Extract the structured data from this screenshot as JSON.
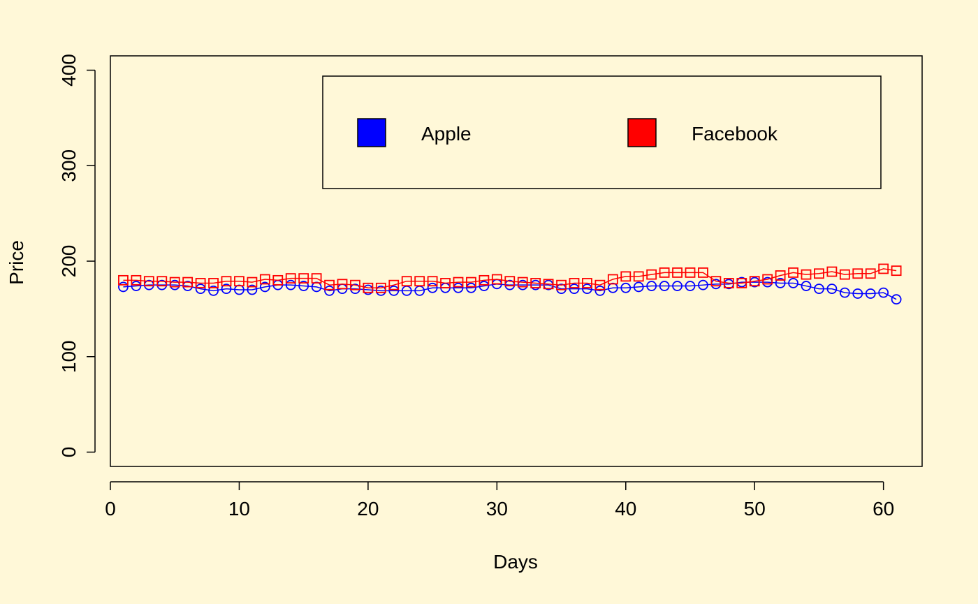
{
  "chart_data": {
    "type": "line",
    "title": "",
    "xlabel": "Days",
    "ylabel": "Price",
    "xlim": [
      0,
      63
    ],
    "ylim": [
      -15,
      415
    ],
    "x_ticks": [
      0,
      10,
      20,
      30,
      40,
      50,
      60
    ],
    "x_tick_labels": [
      "0",
      "10",
      "20",
      "30",
      "40",
      "50",
      "60"
    ],
    "y_ticks": [
      0,
      100,
      200,
      300,
      400
    ],
    "y_tick_labels": [
      "0",
      "100",
      "200",
      "300",
      "400"
    ],
    "grid": false,
    "legend_position": "top-right",
    "background_color": "#fff8d8",
    "x": [
      1,
      2,
      3,
      4,
      5,
      6,
      7,
      8,
      9,
      10,
      11,
      12,
      13,
      14,
      15,
      16,
      17,
      18,
      19,
      20,
      21,
      22,
      23,
      24,
      25,
      26,
      27,
      28,
      29,
      30,
      31,
      32,
      33,
      34,
      35,
      36,
      37,
      38,
      39,
      40,
      41,
      42,
      43,
      44,
      45,
      46,
      47,
      48,
      49,
      50,
      51,
      52,
      53,
      54,
      55,
      56,
      57,
      58,
      59,
      60,
      61
    ],
    "series": [
      {
        "name": "Apple",
        "color": "#0000ff",
        "marker": "circle",
        "values": [
          173,
          174,
          175,
          175,
          175,
          174,
          171,
          169,
          171,
          170,
          170,
          173,
          175,
          175,
          174,
          173,
          169,
          171,
          171,
          170,
          169,
          169,
          169,
          169,
          172,
          172,
          172,
          172,
          174,
          176,
          175,
          175,
          175,
          175,
          171,
          171,
          171,
          169,
          172,
          172,
          173,
          174,
          174,
          174,
          174,
          175,
          176,
          176,
          178,
          178,
          178,
          177,
          177,
          174,
          171,
          171,
          167,
          166,
          166,
          167,
          160
        ]
      },
      {
        "name": "Facebook",
        "color": "#ff0000",
        "marker": "square",
        "values": [
          180,
          180,
          179,
          179,
          178,
          178,
          177,
          177,
          179,
          179,
          178,
          181,
          180,
          182,
          182,
          182,
          175,
          176,
          175,
          172,
          172,
          175,
          179,
          179,
          179,
          177,
          178,
          178,
          180,
          181,
          179,
          178,
          177,
          176,
          175,
          177,
          177,
          175,
          181,
          184,
          184,
          186,
          188,
          188,
          188,
          188,
          179,
          177,
          177,
          179,
          181,
          185,
          188,
          186,
          187,
          189,
          186,
          187,
          187,
          192,
          190
        ]
      }
    ]
  }
}
